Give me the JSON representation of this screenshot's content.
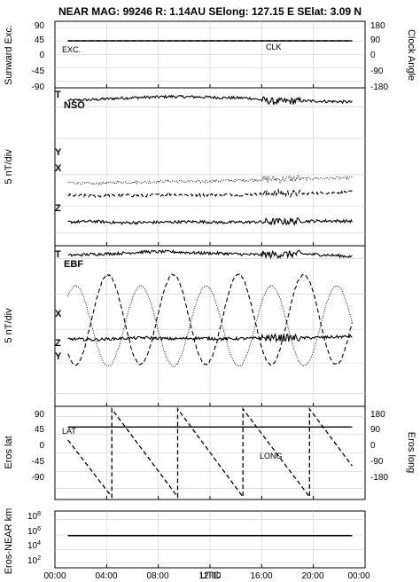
{
  "title": "NEAR MAG: 99246  R: 1.14AU  SElong: 127.15 E  SElat:    3.09 N",
  "xlabel": "UTC",
  "x_ticks": [
    "00:00",
    "04:00",
    "08:00",
    "12:00",
    "16:00",
    "20:00",
    "00:00"
  ],
  "panels": {
    "p1": {
      "left_label": "Sunward Exc.",
      "right_label": "Clock Angle",
      "left_ticks": [
        "90",
        "45",
        "0",
        "-45",
        "-90"
      ],
      "right_ticks": [
        "180",
        "90",
        "0",
        "-90",
        "-180"
      ],
      "exc_label": "EXC.",
      "clk_label": "CLK"
    },
    "p2": {
      "ylabel": "5 nT/div",
      "frame_label": "NSO",
      "t_label": "T",
      "y_label": "Y",
      "x_label": "X",
      "z_label": "Z"
    },
    "p3": {
      "ylabel": "5 nT/div",
      "frame_label": "EBF",
      "t_label": "T",
      "x_label": "X",
      "z_label": "Z",
      "y_label": "Y"
    },
    "p4": {
      "left_label": "Eros lat",
      "right_label": "Eros long",
      "left_ticks": [
        "90",
        "45",
        "0",
        "-45",
        "-90"
      ],
      "right_ticks": [
        "180",
        "90",
        "0",
        "-90",
        "-180"
      ],
      "lat_label": "LAT",
      "long_label": "LONG"
    },
    "p5": {
      "ylabel": "Eros-NEAR km",
      "y_ticks": [
        {
          "base": "10",
          "exp": "8"
        },
        {
          "base": "10",
          "exp": "6"
        },
        {
          "base": "10",
          "exp": "4"
        },
        {
          "base": "10",
          "exp": "2"
        }
      ]
    }
  },
  "chart_data": {
    "type": "line",
    "xlim": [
      0,
      24
    ],
    "x_units": "hours UTC",
    "panels": [
      {
        "name": "sunward-exc-clock",
        "ylim": [
          -90,
          90
        ],
        "y2lim": [
          -180,
          180
        ],
        "series": [
          {
            "name": "EXC.",
            "style": "solid",
            "x": [
              1,
              23
            ],
            "y": [
              37,
              37
            ]
          },
          {
            "name": "CLK",
            "style": "dashed",
            "x": [
              1,
              23
            ],
            "y2": [
              75,
              75
            ]
          }
        ]
      },
      {
        "name": "nso",
        "series": [
          {
            "name": "T",
            "style": "solid",
            "level": 0.92,
            "x": [
              1,
              3,
              5,
              7,
              9,
              11,
              13,
              15,
              17,
              19,
              21,
              23
            ],
            "y": [
              0,
              0.2,
              0.6,
              0.8,
              1.0,
              0.9,
              0.7,
              0.6,
              -0.3,
              -0.1,
              -0.2,
              -0.4
            ]
          },
          {
            "name": "Y",
            "style": "dotted",
            "level": 0.4,
            "x": [
              1,
              3,
              5,
              7,
              9,
              11,
              13,
              15,
              17,
              19,
              21,
              23
            ],
            "y": [
              0,
              -0.3,
              0.1,
              0.1,
              0.4,
              0.2,
              0.5,
              0.6,
              0.9,
              1.0,
              1.1,
              1.2
            ]
          },
          {
            "name": "X",
            "style": "dashed",
            "level": 0.32,
            "x": [
              1,
              3,
              5,
              7,
              9,
              11,
              13,
              15,
              17,
              19,
              21,
              23
            ],
            "y": [
              0,
              -0.2,
              0,
              -0.1,
              0.2,
              0,
              0.2,
              0.1,
              0.5,
              0.4,
              0.6,
              0.8
            ]
          },
          {
            "name": "Z",
            "style": "solid",
            "level": 0.15,
            "x": [
              1,
              3,
              5,
              7,
              9,
              11,
              13,
              15,
              17,
              19,
              21,
              23
            ],
            "y": [
              0,
              0.2,
              -0.2,
              -0.1,
              0,
              0.1,
              -0.1,
              0,
              0.1,
              0.2,
              0.3,
              0.2
            ]
          }
        ]
      },
      {
        "name": "ebf",
        "series": [
          {
            "name": "T",
            "style": "solid",
            "level": 0.94,
            "x": [
              1,
              3,
              5,
              7,
              9,
              11,
              13,
              15,
              17,
              19,
              21,
              23
            ],
            "y": [
              0,
              0.3,
              0.5,
              0.9,
              0.9,
              0.6,
              0.5,
              0.2,
              0.2,
              0.4,
              0.1,
              -0.3
            ]
          },
          {
            "name": "X",
            "style": "dashed",
            "sinusoid": {
              "period_h": 5.05,
              "peak_h": 4.1,
              "center": 0.54,
              "amplitude": 0.28
            }
          },
          {
            "name": "Y",
            "style": "dotted",
            "sinusoid": {
              "period_h": 5.05,
              "peak_h": 1.6,
              "center": 0.5,
              "amplitude": 0.25
            }
          },
          {
            "name": "Z",
            "style": "solid",
            "level": 0.42,
            "x": [
              1,
              3,
              5,
              7,
              9,
              11,
              13,
              15,
              17,
              19,
              21,
              23
            ],
            "y": [
              0,
              -0.2,
              0.1,
              0.3,
              0,
              0.2,
              0,
              0.1,
              0.3,
              0.2,
              0.4,
              0.6
            ]
          }
        ]
      },
      {
        "name": "eros-lat-long",
        "ylim": [
          -90,
          90
        ],
        "y2lim": [
          -180,
          180
        ],
        "series": [
          {
            "name": "LAT",
            "style": "solid",
            "x": [
              1,
              23
            ],
            "y": [
              50,
              50
            ]
          },
          {
            "name": "LONG",
            "style": "dashed",
            "x": [
              1,
              4.4,
              4.4,
              9.5,
              9.5,
              14.55,
              14.55,
              19.7,
              19.7,
              23
            ],
            "y2": [
              50,
              -170,
              170,
              -170,
              170,
              -170,
              170,
              -170,
              170,
              -50
            ]
          }
        ]
      },
      {
        "name": "eros-near-distance",
        "yscale": "log",
        "ylim": [
          10,
          100000000
        ],
        "series": [
          {
            "name": "distance",
            "style": "solid",
            "x": [
              1,
              23
            ],
            "y": [
              600000,
              600000
            ]
          }
        ]
      }
    ]
  }
}
